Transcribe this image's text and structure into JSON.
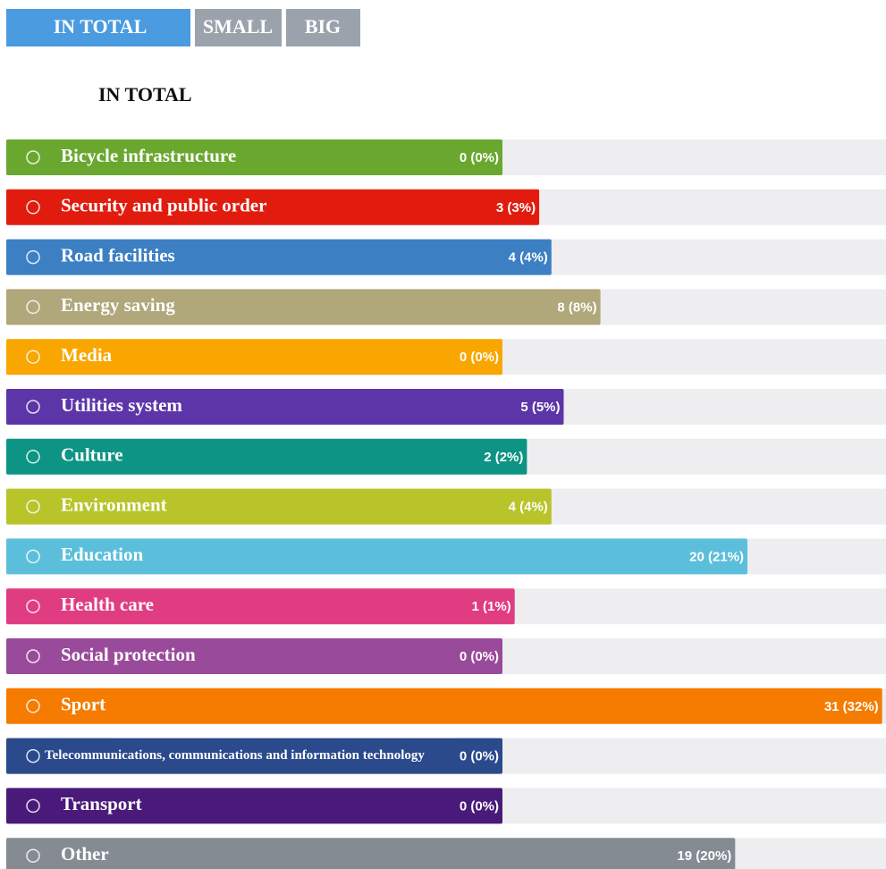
{
  "tabs": [
    "IN TOTAL",
    "SMALL",
    "BIG"
  ],
  "heading": "IN TOTAL",
  "chart_data": {
    "type": "bar",
    "categories": [
      "Bicycle infrastructure",
      "Security and public order",
      "Road facilities",
      "Energy saving",
      "Media",
      "Utilities system",
      "Culture",
      "Environment",
      "Education",
      "Health care",
      "Social protection",
      "Sport",
      "Telecommunications, communications and information technology",
      "Transport",
      "Other"
    ],
    "values": [
      0,
      3,
      4,
      8,
      0,
      5,
      2,
      4,
      20,
      1,
      0,
      31,
      0,
      0,
      19
    ],
    "value_labels": [
      "0 (0%)",
      "3 (3%)",
      "4 (4%)",
      "8 (8%)",
      "0 (0%)",
      "5 (5%)",
      "2 (2%)",
      "4 (4%)",
      "20 (21%)",
      "1 (1%)",
      "0 (0%)",
      "31 (32%)",
      "0 (0%)",
      "0 (0%)",
      "19 (20%)"
    ],
    "colors": [
      "#6aa72f",
      "#e11c0e",
      "#3d7fc3",
      "#b0a77a",
      "#f9a600",
      "#5c35a8",
      "#0d9484",
      "#b8c42a",
      "#5bbfdc",
      "#e03c82",
      "#9a4a9a",
      "#f57c00",
      "#2a4a8c",
      "#4a1a7a",
      "#858b93"
    ]
  }
}
